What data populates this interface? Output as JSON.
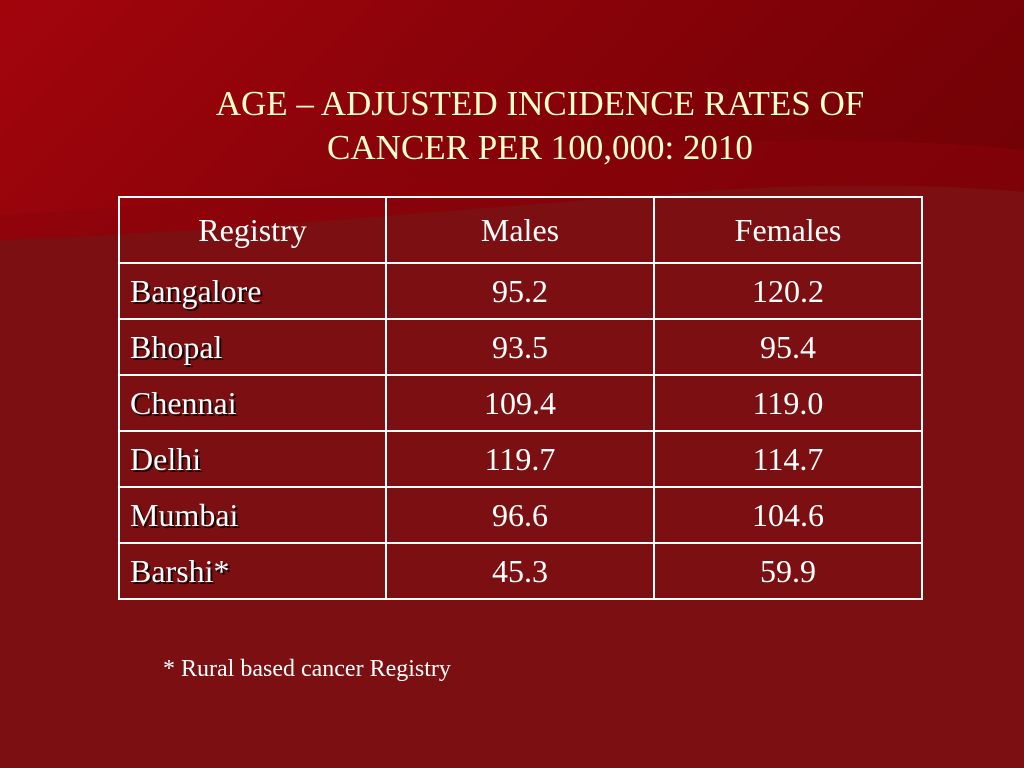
{
  "slide": {
    "title_line1": "AGE – ADJUSTED INCIDENCE RATES OF",
    "title_line2": "CANCER PER 100,000:  2010",
    "footnote": "* Rural based cancer Registry",
    "colors": {
      "background": "#7b0f12",
      "band": "#9a030b",
      "title_text": "#ffffcc",
      "table_text": "#ffffff",
      "table_border": "#ffffff"
    }
  },
  "table": {
    "headers": [
      "Registry",
      "Males",
      "Females"
    ],
    "rows": [
      {
        "registry": "Bangalore",
        "males": "95.2",
        "females": "120.2"
      },
      {
        "registry": "Bhopal",
        "males": "93.5",
        "females": "95.4"
      },
      {
        "registry": "Chennai",
        "males": "109.4",
        "females": "119.0"
      },
      {
        "registry": "Delhi",
        "males": "119.7",
        "females": "114.7"
      },
      {
        "registry": "Mumbai",
        "males": "96.6",
        "females": "104.6"
      },
      {
        "registry": "Barshi*",
        "males": "45.3",
        "females": "59.9"
      }
    ]
  }
}
